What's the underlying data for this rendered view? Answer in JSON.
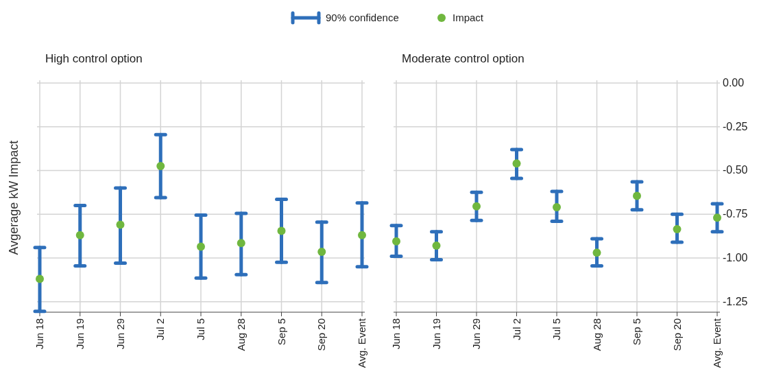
{
  "chart_data": [
    {
      "type": "scatter",
      "title": "High control option",
      "ylabel": "Avgerage kW Impact",
      "categories": [
        "Jun 18",
        "Jun 19",
        "Jun 29",
        "Jul 2",
        "Jul 5",
        "Aug 28",
        "Sep 5",
        "Sep 20",
        "Avg. Event"
      ],
      "series": [
        {
          "name": "Impact",
          "color": "#70b73f",
          "values": [
            -1.12,
            -0.87,
            -0.81,
            -0.475,
            -0.935,
            -0.915,
            -0.845,
            -0.965,
            -0.87
          ],
          "errors": [
            [
              -1.305,
              -0.94
            ],
            [
              -1.045,
              -0.7
            ],
            [
              -1.03,
              -0.6
            ],
            [
              -0.655,
              -0.295
            ],
            [
              -1.115,
              -0.755
            ],
            [
              -1.095,
              -0.745
            ],
            [
              -1.025,
              -0.665
            ],
            [
              -1.14,
              -0.795
            ],
            [
              -1.05,
              -0.685
            ]
          ]
        }
      ],
      "ylim": [
        -1.31,
        0
      ],
      "yticks": [
        {
          "value": 0,
          "label": null
        },
        {
          "value": -0.25,
          "label": null
        },
        {
          "value": -0.5,
          "label": null
        },
        {
          "value": -0.75,
          "label": null
        },
        {
          "value": -1,
          "label": null
        },
        {
          "value": -1.25,
          "label": null
        }
      ],
      "grid": true,
      "tick_labels": "x",
      "marker": "circle",
      "legend": "top",
      "annotations": [
        "90% confidence"
      ]
    },
    {
      "type": "scatter",
      "title": "Moderate control option",
      "categories": [
        "Jun 18",
        "Jun 19",
        "Jun 29",
        "Jul 2",
        "Jul 5",
        "Aug 28",
        "Sep 5",
        "Sep 20",
        "Avg. Event"
      ],
      "series": [
        {
          "color": "#70b73f",
          "values": [
            -0.905,
            -0.93,
            -0.705,
            -0.46,
            -0.71,
            -0.97,
            -0.645,
            -0.835,
            -0.77
          ],
          "errors": [
            [
              -0.99,
              -0.815
            ],
            [
              -1.01,
              -0.85
            ],
            [
              -0.785,
              -0.625
            ],
            [
              -0.545,
              -0.38
            ],
            [
              -0.79,
              -0.62
            ],
            [
              -1.045,
              -0.89
            ],
            [
              -0.725,
              -0.565
            ],
            [
              -0.91,
              -0.75
            ],
            [
              -0.85,
              -0.69
            ]
          ]
        }
      ],
      "ylim": [
        -1.31,
        0
      ],
      "yticks": [
        {
          "value": 0,
          "label": "0.00"
        },
        {
          "value": -0.25,
          "label": "-0.25"
        },
        {
          "value": -0.5,
          "label": "-0.50"
        },
        {
          "value": -0.75,
          "label": "-0.75"
        },
        {
          "value": -1,
          "label": "-1.00"
        },
        {
          "value": -1.25,
          "label": "-1.25"
        }
      ],
      "grid": true,
      "marker": "circle"
    }
  ]
}
